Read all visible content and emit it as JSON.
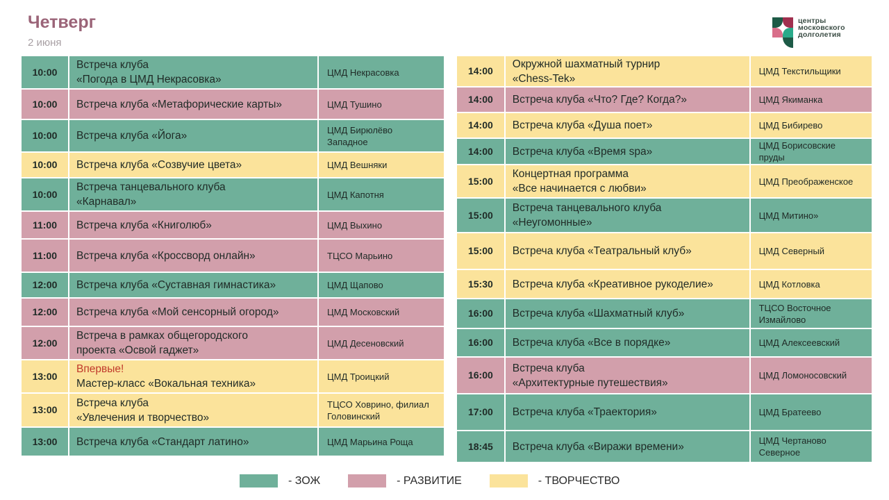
{
  "header": {
    "title": "Четверг",
    "date": "2 июня"
  },
  "logo": {
    "line1": "центры",
    "line2": "московского",
    "line3": "долголетия",
    "colors": [
      "#1d5a46",
      "#a0304f",
      "#d96e8a",
      "#2aaa8a"
    ]
  },
  "colors": {
    "zoj": "#6fb09a",
    "razvitie": "#d29fab",
    "tvorchestvo": "#fbe39b",
    "title": "#9b6478",
    "new_label": "#c0392b"
  },
  "left_events": [
    {
      "time": "10:00",
      "title1": "Встреча клуба",
      "title2": "«Погода в ЦМД Некрасовка»",
      "place1": "ЦМД Некрасовка",
      "place2": "",
      "category": "zoj"
    },
    {
      "time": "10:00",
      "title1": "Встреча клуба «Метафорические карты»",
      "title2": "",
      "place1": "ЦМД Тушино",
      "place2": "",
      "category": "razv"
    },
    {
      "time": "10:00",
      "title1": "Встреча клуба «Йога»",
      "title2": "",
      "place1": "ЦМД Бирюлёво",
      "place2": "Западное",
      "category": "zoj"
    },
    {
      "time": "10:00",
      "title1": "Встреча клуба «Созвучие цвета»",
      "title2": "",
      "place1": "ЦМД Вешняки",
      "place2": "",
      "category": "tvor"
    },
    {
      "time": "10:00",
      "title1": "Встреча танцевального клуба",
      "title2": "«Карнавал»",
      "place1": "ЦМД Капотня",
      "place2": "",
      "category": "zoj"
    },
    {
      "time": "11:00",
      "title1": "Встреча клуба «Книголюб»",
      "title2": "",
      "place1": "ЦМД Выхино",
      "place2": "",
      "category": "razv"
    },
    {
      "time": "11:00",
      "title1": "Встреча клуба «Кроссворд онлайн»",
      "title2": "",
      "place1": "ТЦСО Марьино",
      "place2": "",
      "category": "razv"
    },
    {
      "time": "12:00",
      "title1": "Встреча клуба «Суставная гимнастика»",
      "title2": "",
      "place1": "ЦМД Щапово",
      "place2": "",
      "category": "zoj"
    },
    {
      "time": "12:00",
      "title1": "Встреча клуба «Мой сенсорный огород»",
      "title2": "",
      "place1": "ЦМД Московский",
      "place2": "",
      "category": "razv"
    },
    {
      "time": "12:00",
      "title1": "Встреча в рамках общегородского",
      "title2": "проекта «Освой гаджет»",
      "place1": "ЦМД Десеновский",
      "place2": "",
      "category": "razv"
    },
    {
      "time": "13:00",
      "new_label": "Впервые!",
      "title1": "",
      "title2": "Мастер-класс «Вокальная техника»",
      "place1": "ЦМД Троицкий",
      "place2": "",
      "category": "tvor"
    },
    {
      "time": "13:00",
      "title1": "Встреча клуба",
      "title2": "«Увлечения и творчество»",
      "place1": "ТЦСО Ховрино, филиал",
      "place2": "Головинский",
      "category": "tvor"
    },
    {
      "time": "13:00",
      "title1": "Встреча клуба «Стандарт латино»",
      "title2": "",
      "place1": "ЦМД Марьина Роща",
      "place2": "",
      "category": "zoj"
    }
  ],
  "right_events": [
    {
      "time": "14:00",
      "title1": "Окружной шахматный турнир",
      "title2": "«Chess-Tek»",
      "place1": "ЦМД Текстильщики",
      "place2": "",
      "category": "tvor"
    },
    {
      "time": "14:00",
      "title1": "Встреча клуба «Что? Где? Когда?»",
      "title2": "",
      "place1": "ЦМД Якиманка",
      "place2": "",
      "category": "razv"
    },
    {
      "time": "14:00",
      "title1": "Встреча клуба «Душа поет»",
      "title2": "",
      "place1": "ЦМД Бибирево",
      "place2": "",
      "category": "tvor"
    },
    {
      "time": "14:00",
      "title1": "Встреча клуба «Время spa»",
      "title2": "",
      "place1": "ЦМД Борисовские",
      "place2": "пруды",
      "category": "zoj"
    },
    {
      "time": "15:00",
      "title1": "Концертная программа",
      "title2": "«Все начинается с любви»",
      "place1": "ЦМД Преображенское",
      "place2": "",
      "category": "tvor"
    },
    {
      "time": "15:00",
      "title1": "Встреча танцевального клуба",
      "title2": "«Неугомонные»",
      "place1": "ЦМД Митино»",
      "place2": "",
      "category": "zoj"
    },
    {
      "time": "15:00",
      "title1": "Встреча клуба «Театральный клуб»",
      "title2": "",
      "place1": "ЦМД Северный",
      "place2": "",
      "category": "tvor"
    },
    {
      "time": "15:30",
      "title1": "Встреча клуба «Креативное рукоделие»",
      "title2": "",
      "place1": "ЦМД Котловка",
      "place2": "",
      "category": "tvor"
    },
    {
      "time": "16:00",
      "title1": "Встреча клуба «Шахматный клуб»",
      "title2": "",
      "place1": "ТЦСО Восточное",
      "place2": "Измайлово",
      "category": "zoj"
    },
    {
      "time": "16:00",
      "title1": "Встреча клуба «Все в порядке»",
      "title2": "",
      "place1": "ЦМД Алексеевский",
      "place2": "",
      "category": "zoj"
    },
    {
      "time": "16:00",
      "title1": "Встреча клуба",
      "title2": "«Архитектурные путешествия»",
      "place1": "ЦМД Ломоносовский",
      "place2": "",
      "category": "razv"
    },
    {
      "time": "17:00",
      "title1": "Встреча клуба «Траектория»",
      "title2": "",
      "place1": "ЦМД Братеево",
      "place2": "",
      "category": "zoj"
    },
    {
      "time": "18:45",
      "title1": "Встреча клуба «Виражи времени»",
      "title2": "",
      "place1": "ЦМД Чертаново",
      "place2": "Северное",
      "category": "zoj"
    }
  ],
  "legend": [
    {
      "label": "- ЗОЖ",
      "category": "zoj"
    },
    {
      "label": "- РАЗВИТИЕ",
      "category": "razv"
    },
    {
      "label": "- ТВОРЧЕСТВО",
      "category": "tvor"
    }
  ]
}
